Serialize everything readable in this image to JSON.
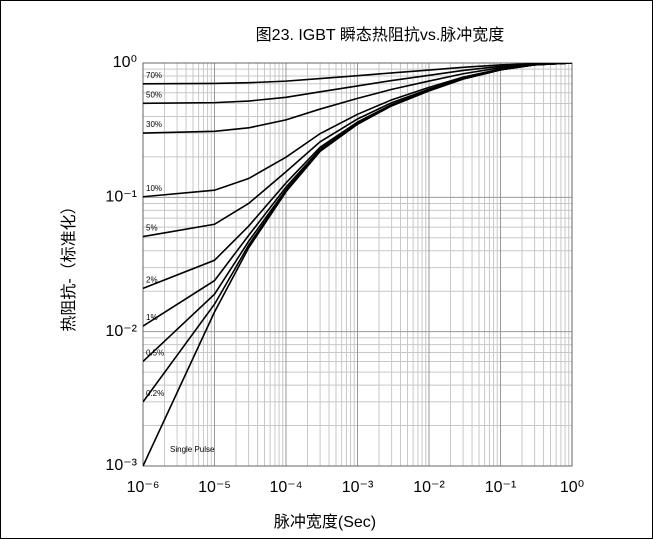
{
  "chart_data": {
    "type": "line",
    "title": "图23. IGBT 瞬态热阻抗vs.脉冲宽度",
    "x_label": "脉冲宽度(Sec)",
    "y_label": "热阻抗-（标准化）",
    "log_x": true,
    "log_y": true,
    "grid": true,
    "xlim": [
      1e-06,
      1
    ],
    "ylim": [
      0.001,
      1
    ],
    "xticks": [
      {
        "value": 1e-06,
        "label": "10⁻⁶"
      },
      {
        "value": 1e-05,
        "label": "10⁻⁵"
      },
      {
        "value": 0.0001,
        "label": "10⁻⁴"
      },
      {
        "value": 0.001,
        "label": "10⁻³"
      },
      {
        "value": 0.01,
        "label": "10⁻²"
      },
      {
        "value": 0.1,
        "label": "10⁻¹"
      },
      {
        "value": 1,
        "label": "10⁰"
      }
    ],
    "yticks": [
      {
        "value": 0.001,
        "label": "10⁻³"
      },
      {
        "value": 0.01,
        "label": "10⁻²"
      },
      {
        "value": 0.1,
        "label": "10⁻¹"
      },
      {
        "value": 1,
        "label": "10⁰"
      }
    ],
    "x": [
      1e-06,
      1e-05,
      3e-05,
      0.0001,
      0.0003,
      0.001,
      0.003,
      0.01,
      0.03,
      0.1,
      0.3,
      1
    ],
    "series": [
      {
        "name": "70%",
        "color": "#000000",
        "values": [
          0.7,
          0.704,
          0.713,
          0.733,
          0.766,
          0.805,
          0.844,
          0.886,
          0.928,
          0.967,
          0.991,
          1
        ]
      },
      {
        "name": "50%",
        "color": "#000000",
        "values": [
          0.501,
          0.507,
          0.521,
          0.555,
          0.61,
          0.675,
          0.74,
          0.81,
          0.88,
          0.945,
          0.985,
          1
        ]
      },
      {
        "name": "30%",
        "color": "#000000",
        "values": [
          0.301,
          0.31,
          0.329,
          0.377,
          0.454,
          0.545,
          0.636,
          0.734,
          0.832,
          0.923,
          0.979,
          1
        ]
      },
      {
        "name": "10%",
        "color": "#000000",
        "values": [
          0.101,
          0.113,
          0.138,
          0.199,
          0.298,
          0.415,
          0.532,
          0.658,
          0.784,
          0.901,
          0.973,
          1
        ]
      },
      {
        "name": "5%",
        "color": "#000000",
        "values": [
          0.051,
          0.063,
          0.09,
          0.155,
          0.259,
          0.383,
          0.506,
          0.639,
          0.772,
          0.896,
          0.972,
          1
        ]
      },
      {
        "name": "2%",
        "color": "#000000",
        "values": [
          0.021,
          0.034,
          0.061,
          0.128,
          0.236,
          0.363,
          0.49,
          0.628,
          0.765,
          0.892,
          0.971,
          1
        ]
      },
      {
        "name": "1%",
        "color": "#000000",
        "values": [
          0.011,
          0.024,
          0.052,
          0.119,
          0.228,
          0.357,
          0.485,
          0.624,
          0.762,
          0.891,
          0.97,
          1
        ]
      },
      {
        "name": "0.5%",
        "color": "#000000",
        "values": [
          0.006,
          0.019,
          0.047,
          0.114,
          0.224,
          0.353,
          0.483,
          0.622,
          0.761,
          0.889,
          0.97,
          1
        ]
      },
      {
        "name": "0.2%",
        "color": "#000000",
        "values": [
          0.003,
          0.016,
          0.044,
          0.112,
          0.222,
          0.351,
          0.481,
          0.621,
          0.76,
          0.889,
          0.97,
          1
        ]
      },
      {
        "name": "Single Pulse",
        "color": "#000000",
        "values": [
          0.001,
          0.014,
          0.042,
          0.11,
          0.22,
          0.35,
          0.48,
          0.62,
          0.76,
          0.89,
          0.97,
          1
        ]
      }
    ]
  }
}
